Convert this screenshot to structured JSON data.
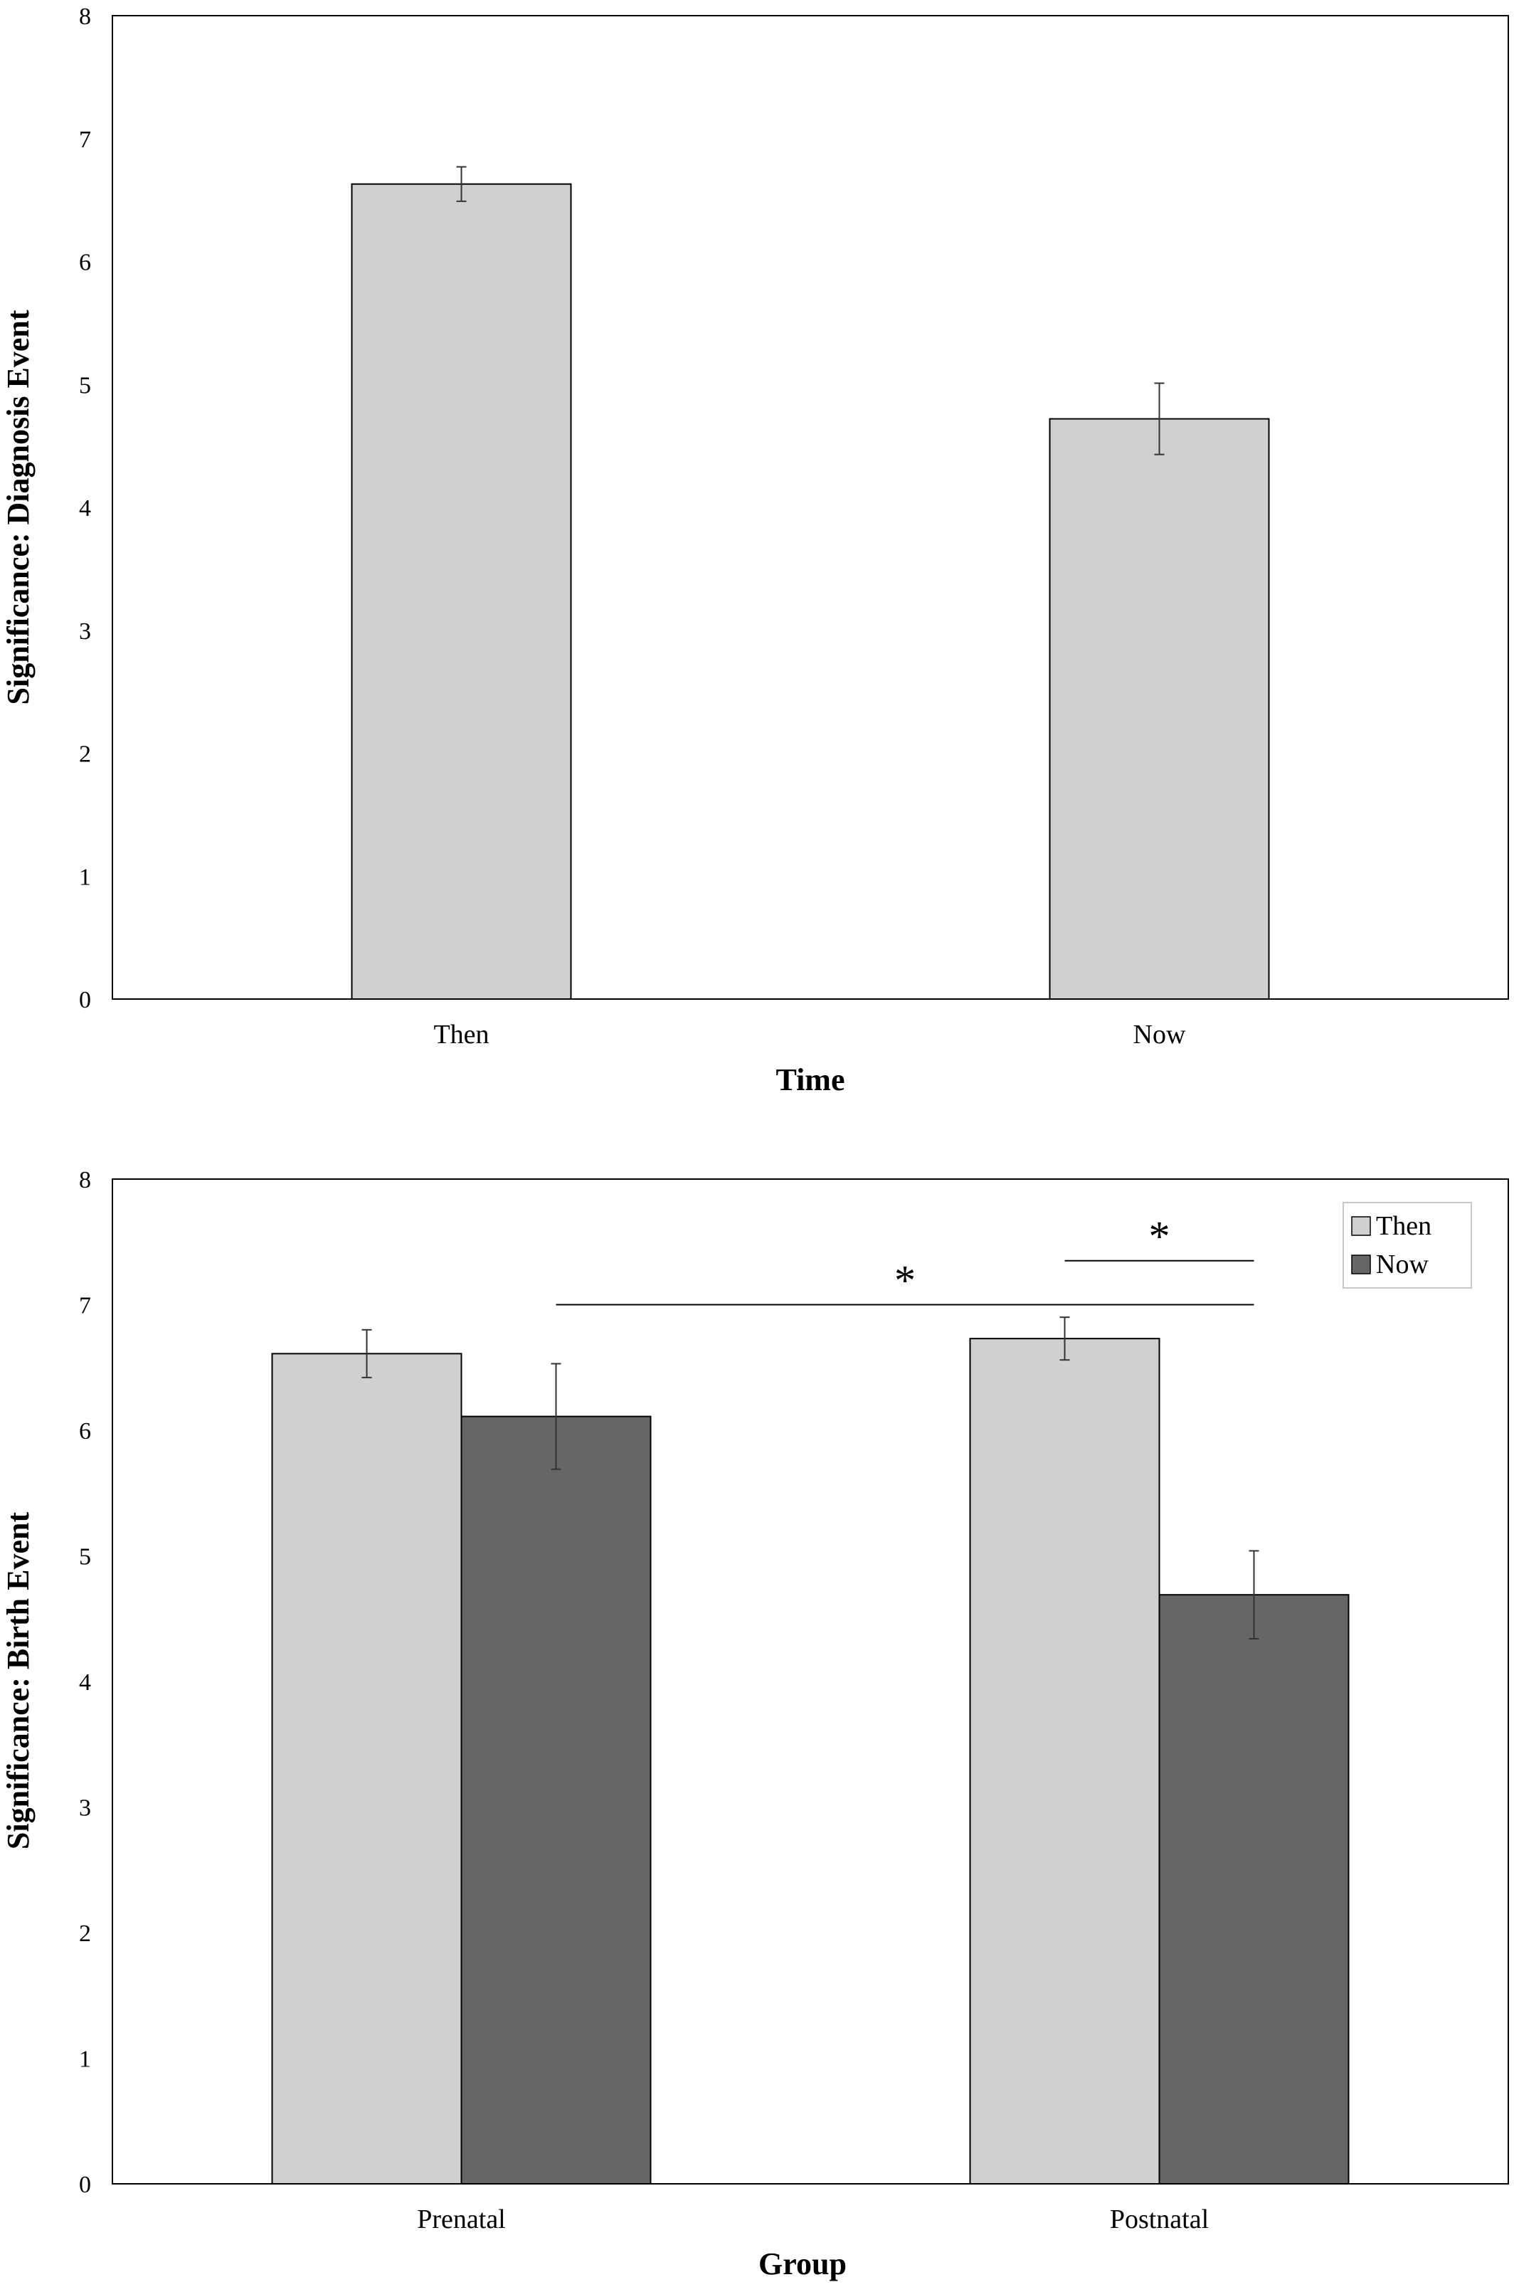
{
  "chart_data": [
    {
      "type": "bar",
      "categories": [
        "Then",
        "Now"
      ],
      "values": [
        6.63,
        4.72
      ],
      "errors": [
        0.14,
        0.29
      ],
      "xlabel": "Time",
      "ylabel": "Significance: Diagnosis Event",
      "ylim": [
        0,
        8
      ],
      "yticks": [
        "0",
        "1",
        "2",
        "3",
        "4",
        "5",
        "6",
        "7",
        "8"
      ],
      "colors": {
        "bar": "#d0d0d0"
      },
      "grid": false
    },
    {
      "type": "bar",
      "categories": [
        "Prenatal",
        "Postnatal"
      ],
      "series": [
        {
          "name": "Then",
          "values": [
            6.61,
            6.73
          ],
          "errors": [
            0.19,
            0.17
          ]
        },
        {
          "name": "Now",
          "values": [
            6.11,
            4.69
          ],
          "errors": [
            0.42,
            0.35
          ]
        }
      ],
      "xlabel": "Group",
      "ylabel": "Significance: Birth Event",
      "ylim": [
        0,
        8
      ],
      "yticks": [
        "0",
        "1",
        "2",
        "3",
        "4",
        "5",
        "6",
        "7",
        "8"
      ],
      "legend": {
        "placement": "top-right",
        "entries": [
          "Then",
          "Now"
        ]
      },
      "annotations": [
        {
          "label": "*",
          "from": "Prenatal Now",
          "to": "Postnatal Now"
        },
        {
          "label": "*",
          "from": "Postnatal Then",
          "to": "Postnatal Now"
        }
      ],
      "colors": {
        "Then": "#d0d0d0",
        "Now": "#666666"
      },
      "grid": false
    }
  ]
}
